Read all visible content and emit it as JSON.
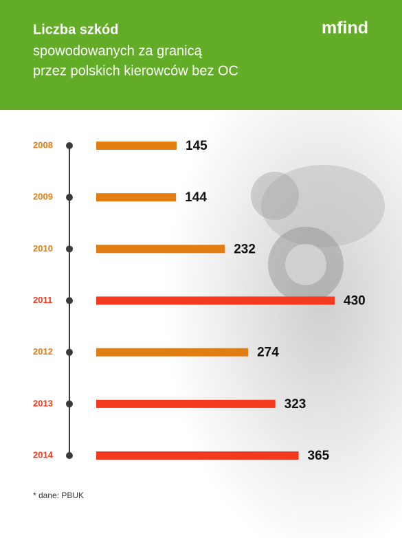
{
  "logo": "mfind",
  "chart_data": {
    "type": "bar",
    "orientation": "horizontal",
    "title": "Liczba szkód",
    "subtitle": [
      "spowodowanych za granicą",
      "przez polskich kierowców bez OC"
    ],
    "categories": [
      "2008",
      "2009",
      "2010",
      "2011",
      "2012",
      "2013",
      "2014"
    ],
    "values": [
      145,
      144,
      232,
      430,
      274,
      323,
      365
    ],
    "colors": [
      "#e27d12",
      "#e27d12",
      "#e27d12",
      "#f43a1e",
      "#e27d12",
      "#f43a1e",
      "#f43a1e"
    ],
    "note": "* dane: PBUK"
  }
}
